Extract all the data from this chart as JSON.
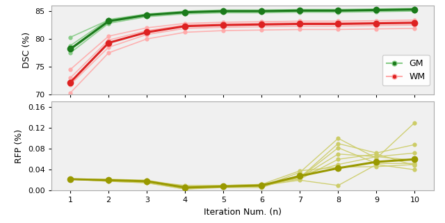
{
  "iterations": [
    1,
    2,
    3,
    4,
    5,
    6,
    7,
    8,
    9,
    10
  ],
  "gm_mean": [
    78.2,
    83.2,
    84.3,
    84.8,
    85.0,
    85.0,
    85.1,
    85.1,
    85.2,
    85.3
  ],
  "gm_lines": [
    [
      77.5,
      82.8,
      84.0,
      84.5,
      84.7,
      84.7,
      84.8,
      84.8,
      84.9,
      85.0
    ],
    [
      78.0,
      83.0,
      84.2,
      84.7,
      84.9,
      84.9,
      85.0,
      85.0,
      85.1,
      85.2
    ],
    [
      78.8,
      83.5,
      84.5,
      85.0,
      85.2,
      85.2,
      85.3,
      85.3,
      85.4,
      85.5
    ],
    [
      80.3,
      83.4,
      84.4,
      84.9,
      85.1,
      85.1,
      85.2,
      85.2,
      85.3,
      85.4
    ]
  ],
  "wm_mean": [
    72.2,
    79.3,
    81.2,
    82.3,
    82.5,
    82.6,
    82.7,
    82.7,
    82.8,
    82.9
  ],
  "wm_lines": [
    [
      74.5,
      80.5,
      82.0,
      82.8,
      83.0,
      83.1,
      83.2,
      83.2,
      83.3,
      83.4
    ],
    [
      73.0,
      79.8,
      81.5,
      82.5,
      82.7,
      82.8,
      82.9,
      82.9,
      83.0,
      83.1
    ],
    [
      71.8,
      78.5,
      80.8,
      81.9,
      82.1,
      82.2,
      82.3,
      82.3,
      82.4,
      82.5
    ],
    [
      70.3,
      77.5,
      80.0,
      81.2,
      81.5,
      81.6,
      81.7,
      81.7,
      81.8,
      81.9
    ]
  ],
  "rfp_mean": [
    0.022,
    0.02,
    0.018,
    0.006,
    0.008,
    0.01,
    0.028,
    0.043,
    0.055,
    0.06
  ],
  "rfp_lines": [
    [
      0.022,
      0.02,
      0.018,
      0.01,
      0.01,
      0.01,
      0.02,
      0.01,
      0.05,
      0.04
    ],
    [
      0.022,
      0.02,
      0.018,
      0.008,
      0.01,
      0.012,
      0.022,
      0.06,
      0.07,
      0.048
    ],
    [
      0.022,
      0.02,
      0.018,
      0.005,
      0.008,
      0.008,
      0.025,
      0.09,
      0.072,
      0.088
    ],
    [
      0.022,
      0.018,
      0.015,
      0.003,
      0.006,
      0.006,
      0.03,
      0.05,
      0.065,
      0.072
    ],
    [
      0.022,
      0.02,
      0.018,
      0.006,
      0.008,
      0.01,
      0.025,
      0.07,
      0.065,
      0.058
    ],
    [
      0.022,
      0.02,
      0.018,
      0.005,
      0.008,
      0.01,
      0.025,
      0.082,
      0.052,
      0.052
    ],
    [
      0.022,
      0.018,
      0.015,
      0.003,
      0.008,
      0.008,
      0.035,
      0.1,
      0.062,
      0.13
    ],
    [
      0.022,
      0.022,
      0.02,
      0.008,
      0.01,
      0.012,
      0.038,
      0.045,
      0.046,
      0.05
    ]
  ],
  "gm_color": "#1a7a1a",
  "gm_light_color": "#88cc88",
  "wm_color": "#dd2222",
  "wm_light_color": "#ffaaaa",
  "rfp_color": "#999900",
  "rfp_light_color": "#cccc66",
  "dsc_ylim": [
    70,
    86
  ],
  "dsc_yticks": [
    70,
    75,
    80,
    85
  ],
  "rfp_ylim": [
    0.0,
    0.17
  ],
  "rfp_yticks": [
    0.0,
    0.04,
    0.08,
    0.12,
    0.16
  ],
  "xlabel": "Iteration Num. (n)",
  "ylabel_top": "DSC (%)",
  "ylabel_bottom": "RFP (%)",
  "legend_gm": "GM",
  "legend_wm": "WM",
  "bg_color": "#f0f0f0"
}
